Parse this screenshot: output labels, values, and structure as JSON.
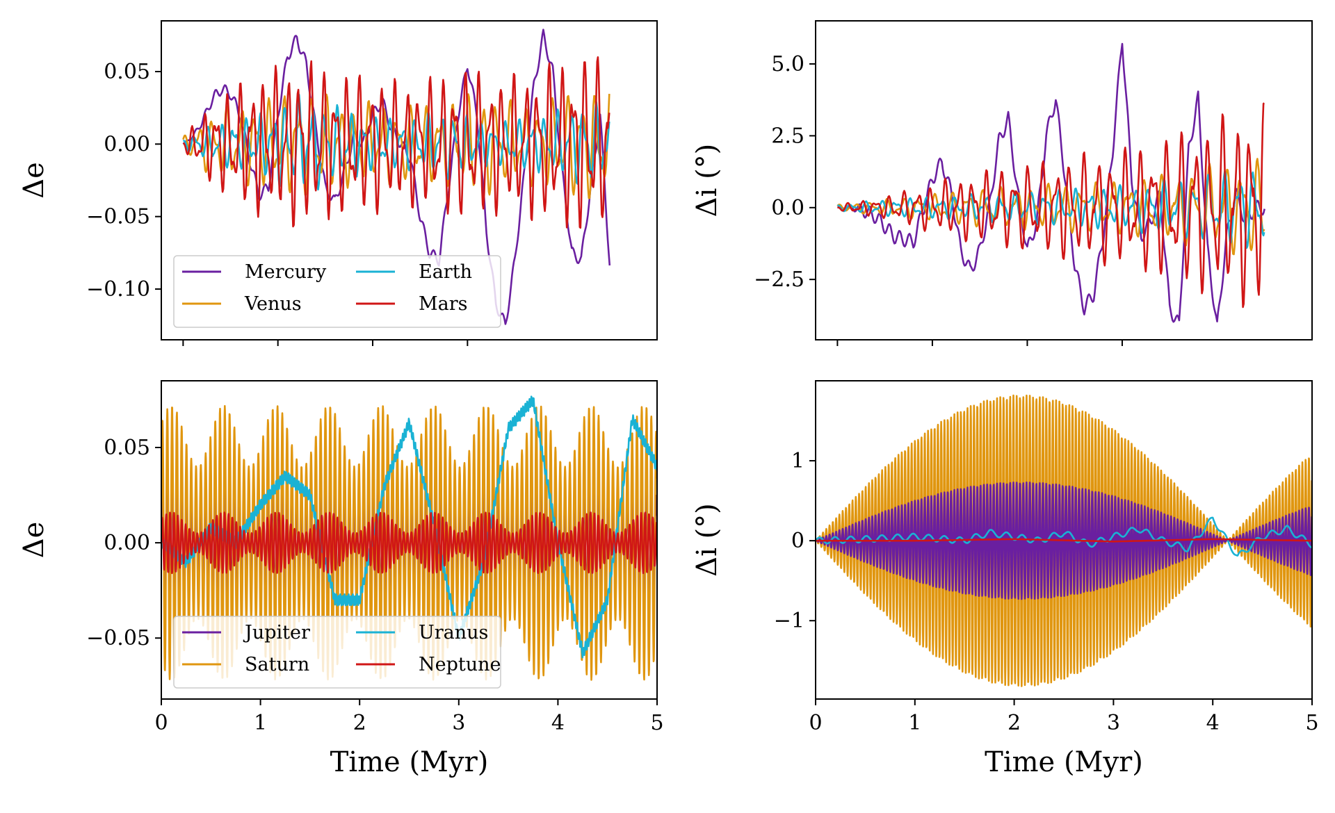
{
  "colors": {
    "Mercury": "#6a1fa0",
    "Venus": "#e0960f",
    "Earth": "#1ab2d4",
    "Mars": "#d01616",
    "Jupiter": "#6a1fa0",
    "Saturn": "#e0960f",
    "Uranus": "#1ab2d4",
    "Neptune": "#d01616"
  },
  "chart_data": [
    {
      "type": "line",
      "panel": "top-left",
      "xlabel": "",
      "ylabel": "Δe",
      "xlim": [
        -0.23,
        5.0
      ],
      "ylim": [
        -0.135,
        0.085
      ],
      "xticks": [
        0,
        1,
        2,
        3
      ],
      "xtick_labels": [
        "",
        "",
        "",
        ""
      ],
      "yticks": [
        -0.1,
        -0.05,
        0.0,
        0.05
      ],
      "ytick_labels": [
        "−0.10",
        "−0.05",
        "0.00",
        "0.05"
      ],
      "legend": {
        "position": "lower-left",
        "columns": 2
      },
      "series": [
        {
          "name": "Mercury",
          "x": [
            0.0,
            0.1,
            0.2,
            0.3,
            0.4,
            0.5,
            0.6,
            0.7,
            0.8,
            0.9,
            1.0,
            1.1,
            1.2,
            1.3,
            1.4,
            1.5,
            1.6,
            1.7,
            1.8,
            1.9,
            2.0,
            2.1,
            2.2,
            2.3,
            2.4,
            2.5,
            2.6,
            2.7,
            2.8,
            2.9,
            3.0,
            3.1,
            3.2,
            3.3,
            3.4,
            3.5,
            3.6,
            3.7,
            3.8,
            3.9,
            4.0,
            4.1,
            4.2,
            4.3,
            4.4,
            4.5
          ],
          "y": [
            0.0,
            0.005,
            0.015,
            0.03,
            0.038,
            0.035,
            0.02,
            -0.01,
            -0.035,
            -0.03,
            0.02,
            0.06,
            0.073,
            0.055,
            0.01,
            -0.03,
            -0.04,
            -0.02,
            0.005,
            0.0,
            0.02,
            0.03,
            0.01,
            0.0,
            -0.01,
            -0.05,
            -0.075,
            -0.08,
            -0.03,
            0.02,
            0.055,
            0.02,
            -0.06,
            -0.11,
            -0.125,
            -0.08,
            -0.02,
            0.04,
            0.075,
            0.05,
            -0.02,
            -0.075,
            -0.08,
            -0.03,
            0.02,
            -0.083
          ]
        },
        {
          "name": "Venus",
          "x": [
            0.0,
            0.25,
            0.5,
            0.75,
            1.0,
            1.25,
            1.5,
            1.75,
            2.0,
            2.25,
            2.5,
            2.75,
            3.0,
            3.25,
            3.5,
            3.75,
            4.0,
            4.25,
            4.5
          ],
          "amplitude": [
            0.005,
            0.02,
            0.028,
            0.03,
            0.035,
            0.038,
            0.035,
            0.03,
            0.03,
            0.028,
            0.028,
            0.03,
            0.035,
            0.035,
            0.03,
            0.03,
            0.035,
            0.04,
            0.04
          ]
        },
        {
          "name": "Earth",
          "x": [
            0.0,
            0.25,
            0.5,
            0.75,
            1.0,
            1.25,
            1.5,
            1.75,
            2.0,
            2.25,
            2.5,
            2.75,
            3.0,
            3.25,
            3.5,
            3.75,
            4.0,
            4.25,
            4.5
          ],
          "amplitude": [
            0.003,
            0.012,
            0.018,
            0.02,
            0.03,
            0.035,
            0.03,
            0.025,
            0.02,
            0.018,
            0.02,
            0.025,
            0.02,
            0.015,
            0.018,
            0.02,
            0.025,
            0.03,
            0.028
          ]
        },
        {
          "name": "Mars",
          "x": [
            0.0,
            0.25,
            0.5,
            0.75,
            1.0,
            1.25,
            1.5,
            1.75,
            2.0,
            2.25,
            2.5,
            2.75,
            3.0,
            3.25,
            3.5,
            3.75,
            4.0,
            4.25,
            4.5
          ],
          "amplitude": [
            0.005,
            0.025,
            0.04,
            0.05,
            0.055,
            0.06,
            0.055,
            0.05,
            0.05,
            0.045,
            0.045,
            0.05,
            0.055,
            0.05,
            0.05,
            0.055,
            0.06,
            0.065,
            0.06
          ]
        }
      ]
    },
    {
      "type": "line",
      "panel": "top-right",
      "xlabel": "",
      "ylabel": "Δi (°)",
      "xlim": [
        -0.23,
        5.0
      ],
      "ylim": [
        -4.6,
        6.5
      ],
      "xticks": [
        0,
        1,
        2,
        3
      ],
      "xtick_labels": [
        "",
        "",
        "",
        ""
      ],
      "yticks": [
        -2.5,
        0.0,
        2.5,
        5.0
      ],
      "ytick_labels": [
        "−2.5",
        "0.0",
        "2.5",
        "5.0"
      ],
      "series": [
        {
          "name": "Mercury",
          "x": [
            0.0,
            0.2,
            0.4,
            0.6,
            0.8,
            1.0,
            1.1,
            1.2,
            1.3,
            1.4,
            1.5,
            1.6,
            1.7,
            1.8,
            1.9,
            2.0,
            2.1,
            2.2,
            2.3,
            2.4,
            2.5,
            2.6,
            2.7,
            2.8,
            2.9,
            3.0,
            3.1,
            3.2,
            3.3,
            3.4,
            3.5,
            3.6,
            3.7,
            3.8,
            3.9,
            4.0,
            4.1,
            4.2,
            4.3,
            4.4,
            4.5
          ],
          "y": [
            0.0,
            0.0,
            -0.3,
            -1.0,
            -1.2,
            1.0,
            1.6,
            0.5,
            -1.5,
            -2.2,
            -1.5,
            0.0,
            2.3,
            3.1,
            0.5,
            -1.5,
            -0.5,
            2.5,
            3.8,
            1.0,
            -2.0,
            -3.5,
            -3.0,
            -1.0,
            2.0,
            5.9,
            1.0,
            -1.0,
            -0.5,
            0.5,
            -3.5,
            -4.1,
            2.0,
            3.8,
            -1.5,
            -4.2,
            -1.0,
            0.5,
            -0.5,
            0.0,
            0.0
          ]
        },
        {
          "name": "Venus",
          "x": [
            0.0,
            0.5,
            1.0,
            1.5,
            2.0,
            2.5,
            3.0,
            3.5,
            4.0,
            4.5
          ],
          "amplitude": [
            0.1,
            0.3,
            0.5,
            0.7,
            0.8,
            0.9,
            1.0,
            1.2,
            1.6,
            1.8
          ]
        },
        {
          "name": "Earth",
          "x": [
            0.0,
            0.5,
            1.0,
            1.5,
            2.0,
            2.5,
            3.0,
            3.5,
            4.0,
            4.5
          ],
          "amplitude": [
            0.1,
            0.3,
            0.4,
            0.5,
            0.6,
            0.7,
            0.8,
            1.0,
            1.3,
            1.5
          ]
        },
        {
          "name": "Mars",
          "x": [
            0.0,
            0.5,
            1.0,
            1.5,
            2.0,
            2.5,
            3.0,
            3.5,
            4.0,
            4.5
          ],
          "amplitude": [
            0.1,
            0.4,
            0.9,
            1.3,
            1.6,
            1.9,
            2.1,
            2.6,
            3.2,
            3.8
          ]
        }
      ]
    },
    {
      "type": "line",
      "panel": "bottom-left",
      "xlabel": "Time (Myr)",
      "ylabel": "Δe",
      "xlim": [
        0,
        5
      ],
      "ylim": [
        -0.082,
        0.085
      ],
      "xticks": [
        0,
        1,
        2,
        3,
        4,
        5
      ],
      "xtick_labels": [
        "0",
        "1",
        "2",
        "3",
        "4",
        "5"
      ],
      "yticks": [
        -0.05,
        0.0,
        0.05
      ],
      "ytick_labels": [
        "−0.05",
        "0.00",
        "0.05"
      ],
      "legend": {
        "position": "lower-left",
        "columns": 2
      },
      "series": [
        {
          "name": "Jupiter",
          "envelope_period": 0.53,
          "amplitude_range": [
            0.015,
            0.032
          ]
        },
        {
          "name": "Saturn",
          "envelope_period": 0.53,
          "amplitude_range": [
            0.04,
            0.072
          ]
        },
        {
          "name": "Uranus",
          "x": [
            0.0,
            0.25,
            0.5,
            0.75,
            1.0,
            1.25,
            1.5,
            1.75,
            2.0,
            2.25,
            2.5,
            2.75,
            3.0,
            3.25,
            3.5,
            3.75,
            4.0,
            4.25,
            4.5,
            4.75,
            5.0
          ],
          "y": [
            0.0,
            -0.01,
            0.008,
            0.0,
            0.02,
            0.035,
            0.025,
            -0.03,
            -0.03,
            0.03,
            0.063,
            0.01,
            -0.05,
            -0.01,
            0.06,
            0.075,
            0.0,
            -0.058,
            -0.03,
            0.065,
            0.04
          ]
        },
        {
          "name": "Neptune",
          "amplitude_range": [
            0.005,
            0.016
          ]
        }
      ]
    },
    {
      "type": "line",
      "panel": "bottom-right",
      "xlabel": "Time (Myr)",
      "ylabel": "Δi (°)",
      "xlim": [
        0,
        5
      ],
      "ylim": [
        -1.98,
        2.0
      ],
      "xticks": [
        0,
        1,
        2,
        3,
        4,
        5
      ],
      "xtick_labels": [
        "0",
        "1",
        "2",
        "3",
        "4",
        "5"
      ],
      "yticks": [
        -1,
        0,
        1
      ],
      "ytick_labels": [
        "−1",
        "0",
        "1"
      ],
      "series": [
        {
          "name": "Saturn",
          "envelope_max": 1.82,
          "envelope_zero": 4.15
        },
        {
          "name": "Jupiter",
          "envelope_max": 0.73,
          "envelope_zero": 4.15
        },
        {
          "name": "Uranus",
          "x": [
            0.0,
            0.5,
            1.0,
            1.5,
            1.75,
            2.0,
            2.25,
            2.5,
            2.75,
            3.0,
            3.25,
            3.5,
            3.75,
            4.0,
            4.25,
            4.5,
            4.75,
            5.0
          ],
          "y": [
            0.0,
            0.02,
            0.05,
            0.0,
            0.1,
            0.05,
            0.0,
            0.1,
            -0.05,
            0.05,
            0.15,
            0.0,
            -0.1,
            0.28,
            -0.2,
            0.05,
            0.15,
            -0.05
          ]
        },
        {
          "name": "Neptune",
          "x": [
            0.0,
            1.0,
            2.0,
            3.0,
            4.0,
            5.0
          ],
          "y": [
            0.0,
            0.0,
            0.02,
            -0.01,
            0.02,
            0.0
          ]
        }
      ]
    }
  ]
}
